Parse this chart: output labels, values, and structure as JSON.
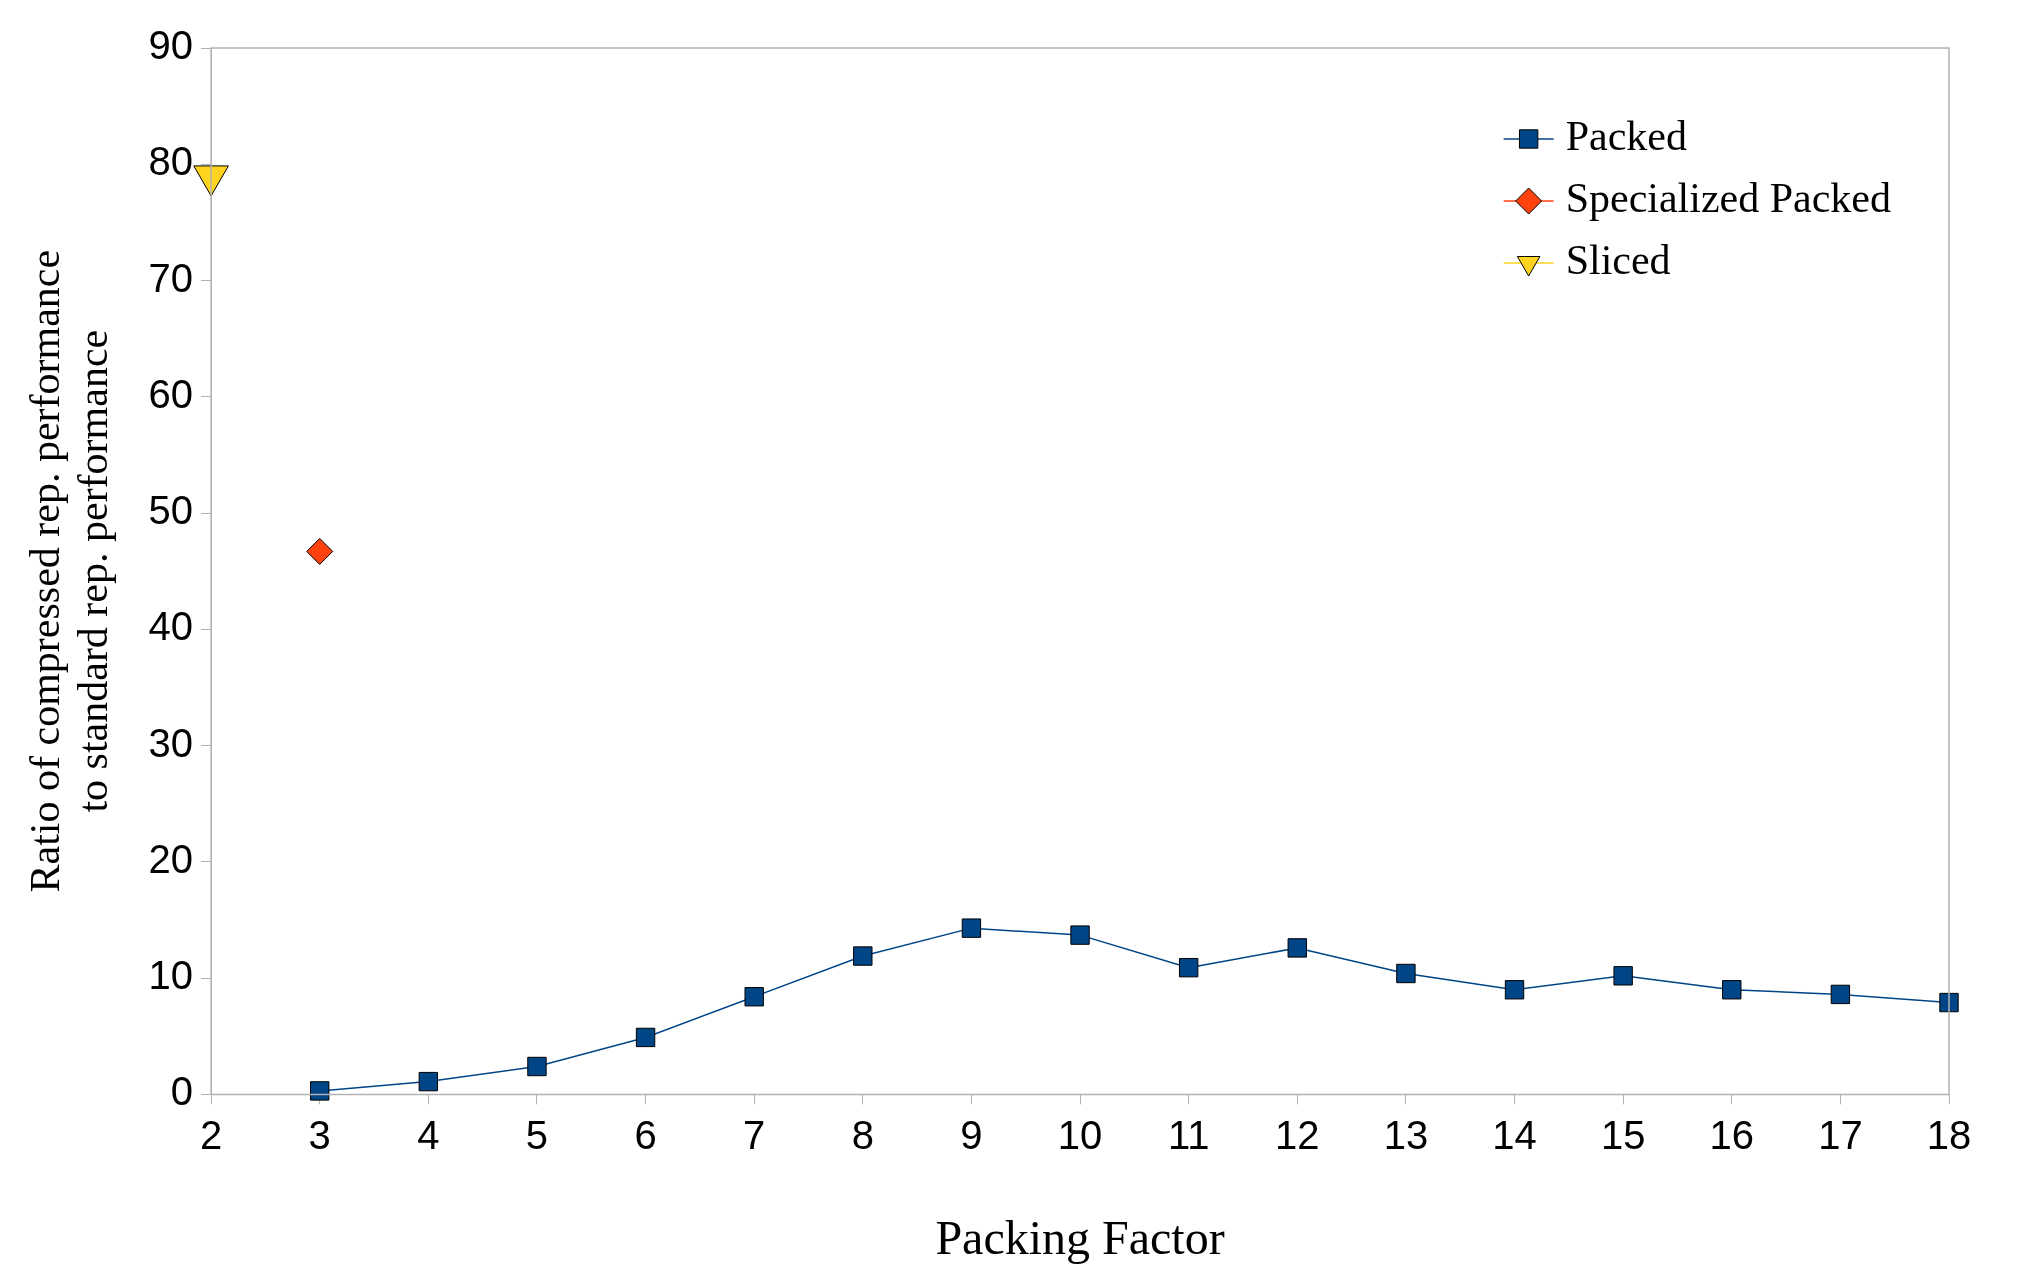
{
  "chart_data": {
    "type": "line",
    "xlabel": "Packing Factor",
    "ylabel": "Ratio of compressed rep. performance\nto standard rep. performance",
    "xlim": [
      2,
      18
    ],
    "xticks": [
      2,
      3,
      4,
      5,
      6,
      7,
      8,
      9,
      10,
      11,
      12,
      13,
      14,
      15,
      16,
      17,
      18
    ],
    "ylim": [
      0,
      90
    ],
    "yticks": [
      0,
      10,
      20,
      30,
      40,
      50,
      60,
      70,
      80,
      90
    ],
    "grid": false,
    "legend": "top right",
    "series": [
      {
        "name": "Packed",
        "color": "#004586",
        "marker": "square",
        "x": [
          3,
          4,
          5,
          6,
          7,
          8,
          9,
          10,
          11,
          12,
          13,
          14,
          15,
          16,
          17,
          18
        ],
        "values": [
          0.3,
          1.1,
          2.4,
          4.9,
          8.4,
          11.9,
          14.3,
          13.7,
          10.9,
          12.6,
          10.4,
          9.0,
          10.2,
          9.0,
          8.6,
          7.9
        ]
      },
      {
        "name": "Specialized Packed",
        "color": "#ff420e",
        "marker": "diamond",
        "x": [
          3
        ],
        "values": [
          46.7
        ]
      },
      {
        "name": "Sliced",
        "color": "#ffd320",
        "marker": "triangle",
        "x": [
          2
        ],
        "values": [
          79
        ]
      }
    ]
  }
}
